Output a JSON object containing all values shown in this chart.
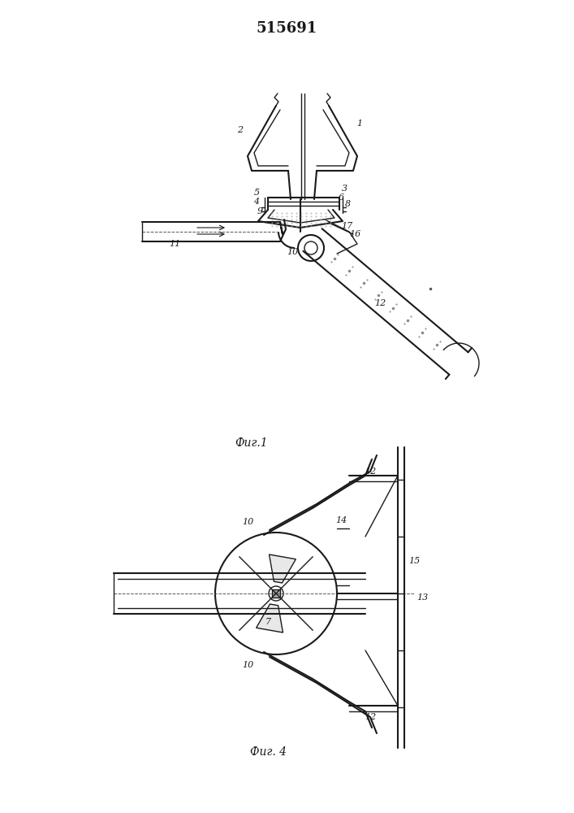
{
  "title": "515691",
  "fig1_caption": "Фиг.1",
  "fig2_caption": "Фиг. 4",
  "bg_color": "#ffffff",
  "line_color": "#1a1a1a",
  "title_fontsize": 13,
  "caption_fontsize": 10
}
